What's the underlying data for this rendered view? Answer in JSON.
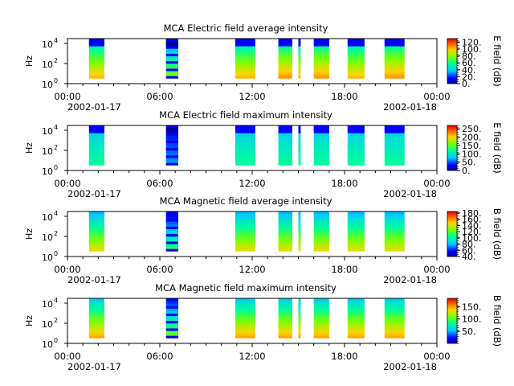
{
  "figure": {
    "y_ticks": [
      "10",
      "10",
      "10"
    ],
    "y_exps": [
      "0",
      "2",
      "4"
    ]
  },
  "chart_data": [
    {
      "type": "heatmap",
      "title": "MCA  Electric field average intensity",
      "ylabel": "Hz",
      "ylim": [
        1,
        30000
      ],
      "yscale": "log",
      "x_ticks": [
        "00:00",
        "06:00",
        "12:00",
        "18:00",
        "00:00"
      ],
      "x_dates": [
        "2002-01-17",
        "",
        "",
        "",
        "2002-01-18"
      ],
      "xlim": [
        "2002-01-17 00:00",
        "2002-01-18 00:00"
      ],
      "colorbar": {
        "label": "E field (dB)",
        "range": [
          0,
          130
        ],
        "ticks": [
          "0.",
          "20.",
          "40.",
          "60.",
          "80.",
          "100.",
          "120."
        ],
        "tick_values": [
          0,
          20,
          40,
          60,
          80,
          100,
          120
        ]
      },
      "segments_utc": [
        [
          1.4,
          2.4
        ],
        [
          6.4,
          7.2
        ],
        [
          10.9,
          12.2
        ],
        [
          13.7,
          14.6
        ],
        [
          15.0,
          15.15
        ],
        [
          16.0,
          17.0
        ],
        [
          18.2,
          19.3
        ],
        [
          20.6,
          21.9
        ]
      ],
      "background": "#ffffff"
    },
    {
      "type": "heatmap",
      "title": "MCA  Electric field maximum intensity",
      "ylabel": "Hz",
      "ylim": [
        1,
        30000
      ],
      "yscale": "log",
      "x_ticks": [
        "00:00",
        "06:00",
        "12:00",
        "18:00",
        "00:00"
      ],
      "x_dates": [
        "2002-01-17",
        "",
        "",
        "",
        "2002-01-18"
      ],
      "xlim": [
        "2002-01-17 00:00",
        "2002-01-18 00:00"
      ],
      "colorbar": {
        "label": "E field (dB)",
        "range": [
          0,
          270
        ],
        "ticks": [
          "0.",
          "50.",
          "100.",
          "150.",
          "200.",
          "250."
        ],
        "tick_values": [
          0,
          50,
          100,
          150,
          200,
          250
        ]
      },
      "segments_utc": [
        [
          1.4,
          2.4
        ],
        [
          6.4,
          7.2
        ],
        [
          10.9,
          12.2
        ],
        [
          13.7,
          14.6
        ],
        [
          15.0,
          15.15
        ],
        [
          16.0,
          17.0
        ],
        [
          18.2,
          19.3
        ],
        [
          20.6,
          21.9
        ]
      ],
      "background": "#ffffff"
    },
    {
      "type": "heatmap",
      "title": "MCA  Magnetic field average intensity",
      "ylabel": "Hz",
      "ylim": [
        1,
        30000
      ],
      "yscale": "log",
      "x_ticks": [
        "00:00",
        "06:00",
        "12:00",
        "18:00",
        "00:00"
      ],
      "x_dates": [
        "2002-01-17",
        "",
        "",
        "",
        "2002-01-18"
      ],
      "xlim": [
        "2002-01-17 00:00",
        "2002-01-18 00:00"
      ],
      "colorbar": {
        "label": "B field (dB)",
        "range": [
          40,
          185
        ],
        "ticks": [
          "40.",
          "60.",
          "80.",
          "100.",
          "120.",
          "140.",
          "160.",
          "180."
        ],
        "tick_values": [
          40,
          60,
          80,
          100,
          120,
          140,
          160,
          180
        ]
      },
      "segments_utc": [
        [
          1.4,
          2.4
        ],
        [
          6.4,
          7.2
        ],
        [
          10.9,
          12.2
        ],
        [
          13.7,
          14.6
        ],
        [
          15.0,
          15.15
        ],
        [
          16.0,
          17.0
        ],
        [
          18.2,
          19.3
        ],
        [
          20.6,
          21.9
        ]
      ],
      "background": "#ffffff"
    },
    {
      "type": "heatmap",
      "title": "MCA  Magnetic field maximum intensity",
      "ylabel": "Hz",
      "ylim": [
        1,
        30000
      ],
      "yscale": "log",
      "x_ticks": [
        "00:00",
        "06:00",
        "12:00",
        "18:00",
        "00:00"
      ],
      "x_dates": [
        "2002-01-17",
        "",
        "",
        "",
        "2002-01-18"
      ],
      "xlim": [
        "2002-01-17 00:00",
        "2002-01-18 00:00"
      ],
      "colorbar": {
        "label": "B field (dB)",
        "range": [
          0,
          185
        ],
        "ticks": [
          "50.",
          "100.",
          "150."
        ],
        "tick_values": [
          50,
          100,
          150
        ]
      },
      "segments_utc": [
        [
          1.4,
          2.4
        ],
        [
          6.4,
          7.2
        ],
        [
          10.9,
          12.2
        ],
        [
          13.7,
          14.6
        ],
        [
          15.0,
          15.15
        ],
        [
          16.0,
          17.0
        ],
        [
          18.2,
          19.3
        ],
        [
          20.6,
          21.9
        ]
      ],
      "background": "#ffffff"
    }
  ]
}
